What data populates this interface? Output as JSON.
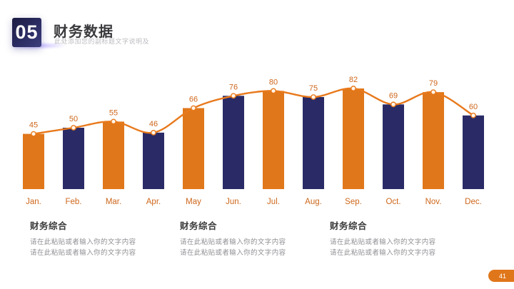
{
  "header": {
    "section_number": "05",
    "title": "财务数据",
    "subtitle": "此处添加您的副标题文字说明及"
  },
  "chart_data": {
    "type": "bar",
    "subtype": "alternating-color-bars-with-smooth-line-overlay",
    "categories": [
      "Jan.",
      "Feb.",
      "Mar.",
      "Apr.",
      "May",
      "Jun.",
      "Jul.",
      "Aug.",
      "Sep.",
      "Oct.",
      "Nov.",
      "Dec."
    ],
    "values": [
      45,
      50,
      55,
      46,
      66,
      76,
      80,
      75,
      82,
      69,
      79,
      60
    ],
    "series": [
      {
        "name": "monthly-bars",
        "type": "bar",
        "values": [
          45,
          50,
          55,
          46,
          66,
          76,
          80,
          75,
          82,
          69,
          79,
          60
        ]
      },
      {
        "name": "trend-line",
        "type": "line",
        "values": [
          45,
          50,
          55,
          46,
          66,
          76,
          80,
          75,
          82,
          69,
          79,
          60
        ]
      }
    ],
    "title": "",
    "xlabel": "",
    "ylabel": "",
    "ylim": [
      0,
      95
    ],
    "grid": false,
    "legend": "none",
    "data_labels": true,
    "bar_colors_alternate": [
      "#E0771A",
      "#2A2B66"
    ],
    "line_color": "#E8791C",
    "marker_fill": "#FFF6EC",
    "label_color": "#CE671B",
    "axis_label_color": "#CE671B"
  },
  "sections": [
    {
      "title": "财务综合",
      "lines": [
        "请在此粘贴或者输入你的文字内容",
        "请在此粘贴或者输入你的文字内容"
      ]
    },
    {
      "title": "财务综合",
      "lines": [
        "请在此粘贴或者输入你的文字内容",
        "请在此粘贴或者输入你的文字内容"
      ]
    },
    {
      "title": "财务综合",
      "lines": [
        "请在此粘贴或者输入你的文字内容",
        "请在此粘贴或者输入你的文字内容"
      ]
    }
  ],
  "footer": {
    "page_number": "41",
    "badge_color": "#E0761A"
  },
  "colors": {
    "accent_orange": "#E0771A",
    "accent_navy": "#2A2B66",
    "title_text": "#3A3A3C",
    "muted_text": "#909095",
    "subtitle_text": "#BDBDC2"
  }
}
